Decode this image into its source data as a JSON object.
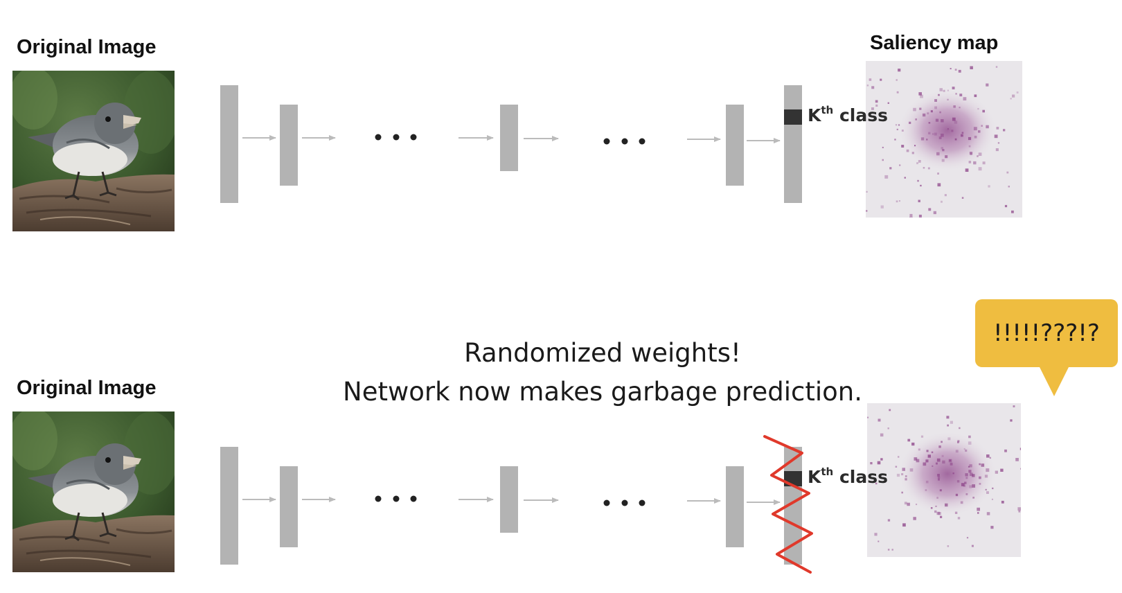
{
  "top_row": {
    "input_label": "Original Image",
    "output_label": "Saliency map",
    "class_label": "K",
    "class_label_sup": "th",
    "class_label_suffix": " class"
  },
  "bottom_row": {
    "input_label": "Original Image",
    "class_label": "K",
    "class_label_sup": "th",
    "class_label_suffix": " class"
  },
  "caption": {
    "line1": "Randomized weights!",
    "line2": "Network now makes garbage prediction."
  },
  "callout": {
    "text": "!!!!!???!?"
  },
  "colors": {
    "layer_bar": "#b3b3b3",
    "kth_class_cell": "#333333",
    "arrow": "#bbbbbb",
    "ellipsis_dot": "#222222",
    "scribble": "#e0392b",
    "callout_fill": "#efbd40",
    "saliency_background": "#e9e6ea",
    "saliency_blob": "#8a3f86"
  },
  "icons": {
    "ellipsis": "ellipsis-dots",
    "arrow": "right-arrow",
    "scribble": "red-zigzag-cross-out"
  }
}
